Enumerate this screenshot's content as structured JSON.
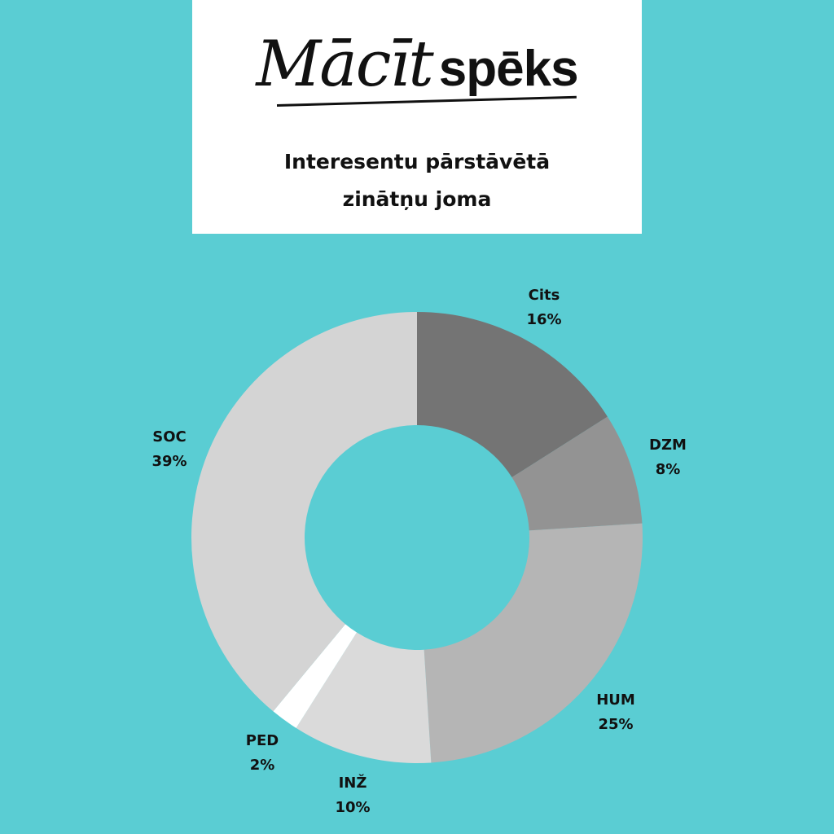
{
  "logo": {
    "script_part": "Mācīt",
    "bold_part": "spēks"
  },
  "title_line1": "Interesentu pārstāvētā",
  "title_line2": "zinātņu joma",
  "colors": {
    "background": "#5acdd3",
    "header": "#ffffff"
  },
  "chart_data": {
    "type": "pie",
    "donut": true,
    "title": "Interesentu pārstāvētā zinātņu joma",
    "start": "top",
    "direction": "clockwise",
    "slices": [
      {
        "label": "Cits",
        "value": 16,
        "value_label": "16%",
        "color": "#747474"
      },
      {
        "label": "DZM",
        "value": 8,
        "value_label": "8%",
        "color": "#939393"
      },
      {
        "label": "HUM",
        "value": 25,
        "value_label": "25%",
        "color": "#b5b5b5"
      },
      {
        "label": "INŽ",
        "value": 10,
        "value_label": "10%",
        "color": "#dadada"
      },
      {
        "label": "PED",
        "value": 2,
        "value_label": "2%",
        "color": "#ffffff"
      },
      {
        "label": "SOC",
        "value": 39,
        "value_label": "39%",
        "color": "#d4d4d4"
      }
    ]
  }
}
